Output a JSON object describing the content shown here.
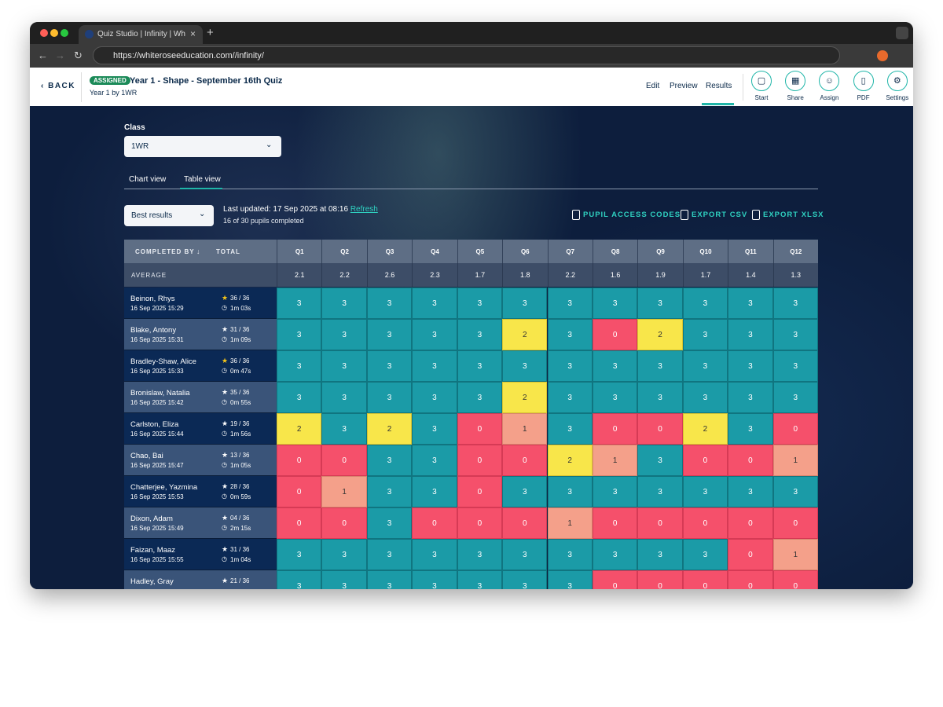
{
  "browser": {
    "tab_title": "Quiz Studio | Infinity | White R",
    "url": "https://whiteroseeducation.com//infinity/"
  },
  "header": {
    "back": "BACK",
    "status": "ASSIGNED",
    "title": "Year 1 - Shape - September 16th Quiz",
    "subtitle": "Year 1 by 1WR",
    "nav": [
      "Edit",
      "Preview",
      "Results"
    ],
    "actions": [
      "Start",
      "Share",
      "Assign",
      "PDF",
      "Settings"
    ]
  },
  "filters": {
    "class_label": "Class",
    "class_value": "1WR",
    "views": [
      "Chart view",
      "Table view"
    ],
    "result_mode": "Best results",
    "last_updated": "Last updated: 17 Sep 2025 at 08:16",
    "refresh": "Refresh",
    "completion": "16 of 30 pupils completed",
    "exports": [
      "PUPIL ACCESS CODES",
      "EXPORT CSV",
      "EXPORT XLSX"
    ]
  },
  "table": {
    "headers": [
      "COMPLETED BY",
      "TOTAL"
    ],
    "questions": [
      "Q1",
      "Q2",
      "Q3",
      "Q4",
      "Q5",
      "Q6",
      "Q7",
      "Q8",
      "Q9",
      "Q10",
      "Q11",
      "Q12"
    ],
    "average_label": "AVERAGE",
    "averages": [
      2.1,
      2.2,
      2.6,
      2.3,
      1.7,
      1.8,
      2.2,
      1.6,
      1.9,
      1.7,
      1.4,
      1.3
    ],
    "rows": [
      {
        "name": "Beinon, Rhys",
        "date": "16 Sep 2025 15:29",
        "total": "36 / 36",
        "time": "1m 03s",
        "scores": [
          3,
          3,
          3,
          3,
          3,
          3,
          3,
          3,
          3,
          3,
          3,
          3
        ]
      },
      {
        "name": "Blake, Antony",
        "date": "16 Sep 2025 15:31",
        "total": "31 / 36",
        "time": "1m 09s",
        "scores": [
          3,
          3,
          3,
          3,
          3,
          2,
          3,
          0,
          2,
          3,
          3,
          3
        ]
      },
      {
        "name": "Bradley-Shaw, Alice",
        "date": "16 Sep 2025 15:33",
        "total": "36 / 36",
        "time": "0m 47s",
        "scores": [
          3,
          3,
          3,
          3,
          3,
          3,
          3,
          3,
          3,
          3,
          3,
          3
        ]
      },
      {
        "name": "Bronislaw, Natalia",
        "date": "16 Sep 2025 15:42",
        "total": "35 / 36",
        "time": "0m 55s",
        "scores": [
          3,
          3,
          3,
          3,
          3,
          2,
          3,
          3,
          3,
          3,
          3,
          3
        ]
      },
      {
        "name": "Carlston, Eliza",
        "date": "16 Sep 2025 15:44",
        "total": "19 / 36",
        "time": "1m 56s",
        "scores": [
          2,
          3,
          2,
          3,
          0,
          1,
          3,
          0,
          0,
          2,
          3,
          0
        ]
      },
      {
        "name": "Chao, Bai",
        "date": "16 Sep 2025 15:47",
        "total": "13 / 36",
        "time": "1m 05s",
        "scores": [
          0,
          0,
          3,
          3,
          0,
          0,
          2,
          1,
          3,
          0,
          0,
          1
        ]
      },
      {
        "name": "Chatterjee, Yazmina",
        "date": "16 Sep 2025 15:53",
        "total": "28 / 36",
        "time": "0m 59s",
        "scores": [
          0,
          1,
          3,
          3,
          0,
          3,
          3,
          3,
          3,
          3,
          3,
          3
        ]
      },
      {
        "name": "Dixon, Adam",
        "date": "16 Sep 2025 15:49",
        "total": "04 / 36",
        "time": "2m 15s",
        "scores": [
          0,
          0,
          3,
          0,
          0,
          0,
          1,
          0,
          0,
          0,
          0,
          0
        ]
      },
      {
        "name": "Faizan, Maaz",
        "date": "16 Sep 2025 15:55",
        "total": "31 / 36",
        "time": "1m 04s",
        "scores": [
          3,
          3,
          3,
          3,
          3,
          3,
          3,
          3,
          3,
          3,
          0,
          1
        ]
      },
      {
        "name": "Hadley, Gray",
        "total": "21 / 36",
        "scores": [
          3,
          3,
          3,
          3,
          3,
          3,
          3,
          0,
          0,
          0,
          0,
          0
        ]
      }
    ]
  }
}
